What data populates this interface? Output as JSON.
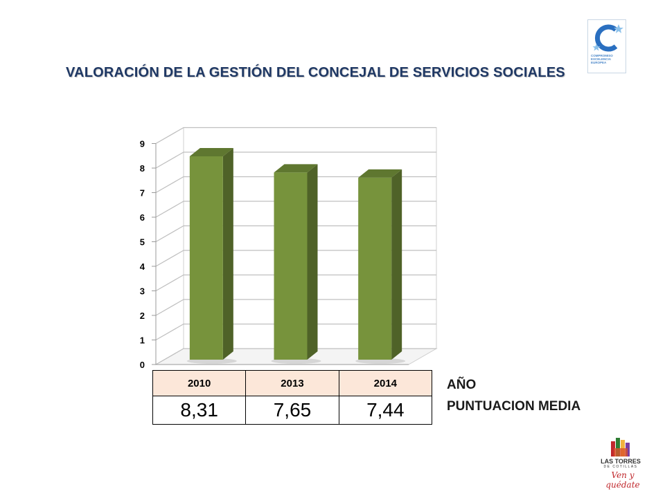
{
  "title": "VALORACIÓN DE LA GESTIÓN DEL CONCEJAL DE SERVICIOS SOCIALES",
  "chart_data": {
    "type": "bar",
    "categories": [
      "2010",
      "2013",
      "2014"
    ],
    "values": [
      8.31,
      7.65,
      7.44
    ],
    "yticks": [
      "0",
      "1",
      "2",
      "3",
      "4",
      "5",
      "6",
      "7",
      "8",
      "9"
    ],
    "ylim": [
      0,
      9
    ],
    "grid": true,
    "legend": false,
    "bar_color": "#77933C",
    "bar_side_color": "#4F6228",
    "bar_top_color": "#5F7730"
  },
  "table": {
    "years": [
      "2010",
      "2013",
      "2014"
    ],
    "scores": [
      "8,31",
      "7,65",
      "7,44"
    ]
  },
  "labels": {
    "year": "AÑO",
    "score": "PUNTUACION MEDIA"
  },
  "logos": {
    "excelencia": {
      "icon": "excelencia-europea-logo",
      "text_1": "COMPROMISO",
      "text_2": "EXCELENCIA",
      "text_3": "EUROPEA"
    },
    "ayuntamiento": {
      "icon": "las-torres-de-cotillas-logo",
      "name": "LAS TORRES",
      "sub": "DE COTILLAS",
      "slogan": "Ven y quédate"
    }
  }
}
